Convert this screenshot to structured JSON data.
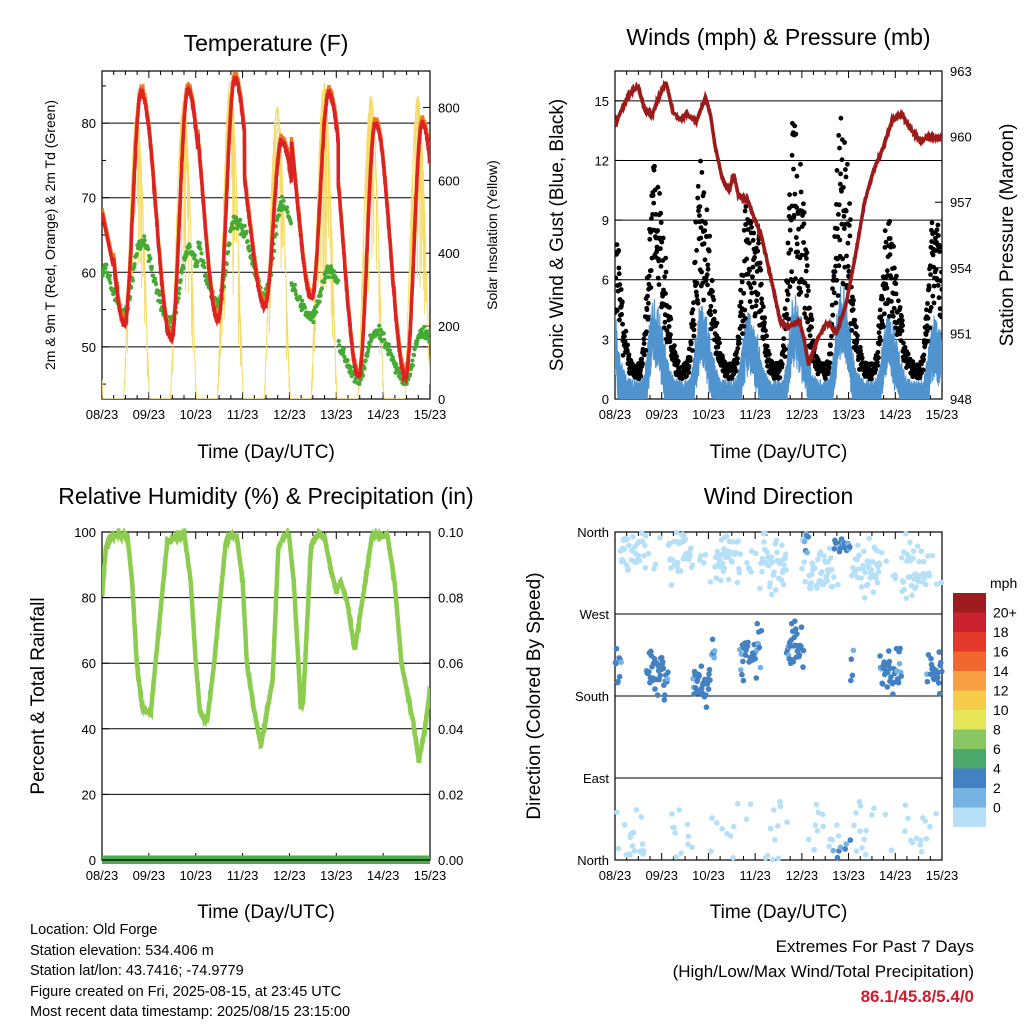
{
  "charts": {
    "temperature": {
      "title": "Temperature (F)",
      "ylabel": "2m & 9m T (Red, Orange) & 2m Td (Green)",
      "y2label": "Solar Insolation (Yellow)",
      "xlabel": "Time (Day/UTC)"
    },
    "winds": {
      "title": "Winds (mph) & Pressure (mb)",
      "ylabel": "Sonic Wind & Gust (Blue, Black)",
      "y2label": "Station Pressure (Maroon)",
      "xlabel": "Time (Day/UTC)"
    },
    "humidity": {
      "title": "Relative Humidity (%) & Precipitation (in)",
      "ylabel": "Percent & Total Rainfall",
      "xlabel": "Time (Day/UTC)"
    },
    "direction": {
      "title": "Wind Direction",
      "ylabel": "Direction (Colored By Speed)",
      "xlabel": "Time (Day/UTC)",
      "legend_title": "mph"
    }
  },
  "chart_data": [
    {
      "type": "line",
      "title": "Temperature (F)",
      "xlabel": "Time (Day/UTC)",
      "ylabel": "2m & 9m T (Red, Orange) & 2m Td (Green)",
      "y2label": "Solar Insolation (Yellow)",
      "xticks": [
        "08/23",
        "09/23",
        "10/23",
        "11/23",
        "12/23",
        "13/23",
        "14/23",
        "15/23"
      ],
      "xlim": [
        8.958,
        15.958
      ],
      "ylim": [
        43,
        87
      ],
      "yticks": [
        50,
        60,
        70,
        80
      ],
      "y2lim": [
        0,
        900
      ],
      "y2ticks": [
        0,
        200,
        400,
        600,
        800
      ],
      "daily_max_temp": [
        80.5,
        84,
        84.5,
        86,
        77.5,
        84,
        80
      ],
      "daily_min_temp": [
        52.5,
        53,
        51,
        53.5,
        55.5,
        56.5,
        46
      ],
      "daily_min_dewpoint": [
        52,
        51.5,
        50,
        52,
        53,
        52,
        43.5
      ],
      "daily_max_dewpoint": [
        61,
        64,
        63,
        67,
        69,
        60,
        52
      ],
      "daily_solar_peak": [
        850,
        780,
        815,
        870,
        800,
        865,
        830
      ],
      "series": [
        {
          "color": "#dd2222"
        },
        {
          "color": "#f07820"
        },
        {
          "color": "#44aa33"
        },
        {
          "color": "#f5dc68"
        }
      ]
    },
    {
      "type": "line",
      "title": "Winds (mph) & Pressure (mb)",
      "xlabel": "Time (Day/UTC)",
      "ylabel": "Sonic Wind & Gust (Blue, Black)",
      "y2label": "Station Pressure (Maroon)",
      "xticks": [
        "08/23",
        "09/23",
        "10/23",
        "11/23",
        "12/23",
        "13/23",
        "14/23",
        "15/23"
      ],
      "xlim": [
        8.958,
        15.958
      ],
      "ylim": [
        0,
        16.5
      ],
      "yticks": [
        0,
        3,
        6,
        9,
        12,
        15
      ],
      "y2lim": [
        948,
        963
      ],
      "y2ticks": [
        948,
        951,
        954,
        957,
        960,
        963
      ],
      "pressure": {
        "x": [
          8.958,
          9.05,
          9.25,
          9.45,
          9.6,
          9.75,
          9.9,
          10.05,
          10.2,
          10.35,
          10.5,
          10.7,
          10.9,
          11.0,
          11.1,
          11.25,
          11.4,
          11.5,
          11.6,
          11.8,
          11.9,
          12.1,
          12.3,
          12.5,
          12.7,
          12.9,
          13.0,
          13.1,
          13.3,
          13.5,
          13.7,
          13.9,
          14.1,
          14.3,
          14.5,
          14.7,
          14.9,
          15.1,
          15.3,
          15.5,
          15.7,
          15.958
        ],
        "y": [
          960.5,
          961.0,
          961.9,
          962.3,
          961.2,
          961.0,
          961.8,
          962.5,
          961.1,
          960.8,
          961.0,
          960.7,
          961.8,
          961.0,
          959.6,
          958.1,
          957.5,
          958.3,
          957.3,
          957.1,
          956.5,
          955.4,
          953.5,
          951.5,
          951.3,
          951.6,
          950.8,
          949.6,
          950.8,
          951.5,
          951.0,
          952.3,
          954.5,
          957.0,
          958.5,
          959.5,
          960.8,
          961.0,
          960.3,
          959.8,
          960.0,
          959.9
        ]
      },
      "daily_gust_peak": [
        11.2,
        12.3,
        11.9,
        10.2,
        14.3,
        14.1,
        9.3
      ],
      "daily_sustained_peak": [
        5.0,
        4.5,
        4.2,
        3.8,
        4.8,
        5.3,
        3.6
      ],
      "series": [
        {
          "color": "#000000"
        },
        {
          "color": "#4f93cf"
        },
        {
          "color": "#9b1b1b"
        }
      ]
    },
    {
      "type": "line",
      "title": "Relative Humidity (%) & Precipitation (in)",
      "xlabel": "Time (Day/UTC)",
      "ylabel": "Percent & Total Rainfall",
      "xticks": [
        "08/23",
        "09/23",
        "10/23",
        "11/23",
        "12/23",
        "13/23",
        "14/23",
        "15/23"
      ],
      "xlim": [
        8.958,
        15.958
      ],
      "ylim": [
        0,
        100
      ],
      "yticks": [
        0,
        20,
        40,
        60,
        80,
        100
      ],
      "y2lim": [
        0,
        0.1
      ],
      "y2ticks": [
        "0.00",
        "0.02",
        "0.04",
        "0.06",
        "0.08",
        "0.10"
      ],
      "relative_humidity": {
        "x": [
          8.958,
          9.04,
          9.14,
          9.24,
          9.5,
          9.6,
          9.7,
          9.82,
          10.0,
          10.2,
          10.35,
          10.6,
          10.72,
          10.85,
          10.96,
          11.05,
          11.2,
          11.35,
          11.6,
          11.7,
          11.83,
          11.96,
          12.05,
          12.2,
          12.35,
          12.6,
          12.72,
          12.85,
          12.95,
          13.05,
          13.15,
          13.2,
          13.25,
          13.3,
          13.42,
          13.55,
          13.7,
          13.85,
          13.96,
          14.05,
          14.2,
          14.35,
          14.6,
          14.72,
          14.85,
          14.96,
          15.05,
          15.2,
          15.35,
          15.6,
          15.72,
          15.85,
          15.958
        ],
        "y": [
          80,
          95,
          98,
          99,
          99,
          85,
          60,
          46,
          45,
          75,
          97,
          99,
          99,
          85,
          60,
          45,
          42,
          60,
          97,
          99,
          99,
          85,
          60,
          46,
          35,
          55,
          95,
          99,
          99,
          85,
          60,
          46,
          48,
          62,
          96,
          99,
          99,
          88,
          82,
          85,
          78,
          64,
          87,
          99,
          99,
          99,
          99,
          85,
          60,
          42,
          30,
          40,
          52
        ]
      },
      "precipitation_total": 0,
      "series": [
        {
          "color": "#8ccc4e"
        },
        {
          "color": "#49ab49"
        }
      ]
    },
    {
      "type": "scatter",
      "title": "Wind Direction",
      "xlabel": "Time (Day/UTC)",
      "ylabel": "Direction (Colored By Speed)",
      "xticks": [
        "08/23",
        "09/23",
        "10/23",
        "11/23",
        "12/23",
        "13/23",
        "14/23",
        "15/23"
      ],
      "xlim": [
        8.958,
        15.958
      ],
      "ylim": [
        0,
        360
      ],
      "yticks": [
        "North",
        "East",
        "South",
        "West",
        "North"
      ],
      "color_scale": {
        "title": "mph",
        "levels": [
          "20+",
          "18",
          "16",
          "14",
          "12",
          "10",
          "8",
          "6",
          "4",
          "2",
          "0"
        ],
        "colors": [
          "#9e1b1e",
          "#c8202f",
          "#e2392b",
          "#f0682e",
          "#f89f43",
          "#f5cd4b",
          "#e6e659",
          "#89c765",
          "#4da86c",
          "#4381c2",
          "#76b3e3",
          "#b5e0f8"
        ]
      },
      "daily_direction_clusters": [
        {
          "day": "08/23",
          "night_deg": 345,
          "afternoon_deg": 225
        },
        {
          "day": "09/23",
          "night_deg": 345,
          "afternoon_deg": 210
        },
        {
          "day": "10/23",
          "night_deg": 340,
          "afternoon_deg": 190
        },
        {
          "day": "11/23",
          "night_deg": 335,
          "afternoon_deg": 225
        },
        {
          "day": "12/23",
          "night_deg": 330,
          "afternoon_deg": 235
        },
        {
          "day": "13/23",
          "night_deg": 315,
          "afternoon_deg": 350
        },
        {
          "day": "14/23",
          "night_deg": 320,
          "afternoon_deg": 210
        }
      ]
    }
  ],
  "footer": {
    "location": "Location: Old Forge",
    "elevation": "Station elevation: 534.406 m",
    "latlon": "Station lat/lon: 43.7416; -74.9779",
    "created": "Figure created on Fri, 2025-08-15, at 23:45 UTC",
    "recent": "Most recent data timestamp: 2025/08/15 23:15:00"
  },
  "extremes": {
    "title": "Extremes For Past 7 Days",
    "subtitle": "(High/Low/Max Wind/Total Precipitation)",
    "values": "86.1/45.8/5.4/0"
  }
}
